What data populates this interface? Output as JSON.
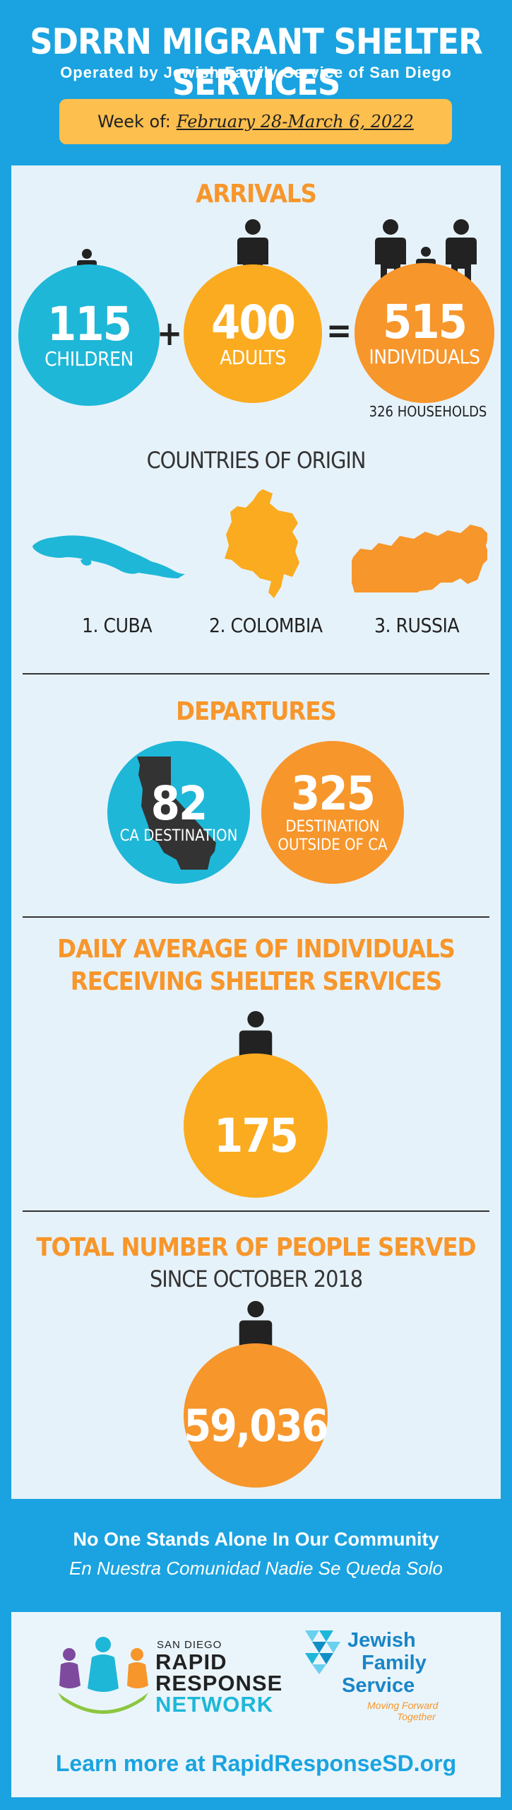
{
  "header": {
    "title": "SDRRN MIGRANT SHELTER SERVICES",
    "subtitle": "Operated by Jewish Family Service of San Diego",
    "week_label": "Week of:",
    "week_value": "February 28-March 6, 2022"
  },
  "arrivals": {
    "title": "ARRIVALS",
    "children": {
      "value": "115",
      "label": "CHILDREN"
    },
    "plus": "+",
    "adults": {
      "value": "400",
      "label": "ADULTS"
    },
    "equals": "=",
    "individuals": {
      "value": "515",
      "label": "INDIVIDUALS"
    },
    "households": "326 HOUSEHOLDS"
  },
  "origin": {
    "title": "COUNTRIES OF ORIGIN",
    "countries": [
      "1. CUBA",
      "2. COLOMBIA",
      "3. RUSSIA"
    ]
  },
  "departures": {
    "title": "DEPARTURES",
    "ca": {
      "value": "82",
      "label": "CA DESTINATION"
    },
    "outside": {
      "value": "325",
      "label_line1": "DESTINATION",
      "label_line2": "OUTSIDE OF CA"
    }
  },
  "daily": {
    "title_line1": "DAILY AVERAGE OF INDIVIDUALS",
    "title_line2": "RECEIVING SHELTER SERVICES",
    "value": "175"
  },
  "total": {
    "title": "TOTAL NUMBER OF PEOPLE SERVED",
    "subtitle": "SINCE OCTOBER 2018",
    "value": "59,036"
  },
  "footer": {
    "tagline_en": "No One Stands Alone In Our Community",
    "tagline_es": "En Nuestra Comunidad Nadie Se Queda Solo",
    "rrn_small": "SAN DIEGO",
    "rrn_line1": "RAPID",
    "rrn_line2": "RESPONSE",
    "rrn_line3": "NETWORK",
    "jfs_line1": "Jewish",
    "jfs_line2": "Family",
    "jfs_line3": "Service",
    "jfs_tag1": "Moving Forward",
    "jfs_tag2": "Together",
    "learn_more": "Learn more at RapidResponseSD.org"
  },
  "colors": {
    "background": "#1aa3e0",
    "panel": "#e6f2fa",
    "teal": "#1eb7d8",
    "orange": "#f7962b",
    "gold": "#fbab1f",
    "dark": "#333333"
  }
}
